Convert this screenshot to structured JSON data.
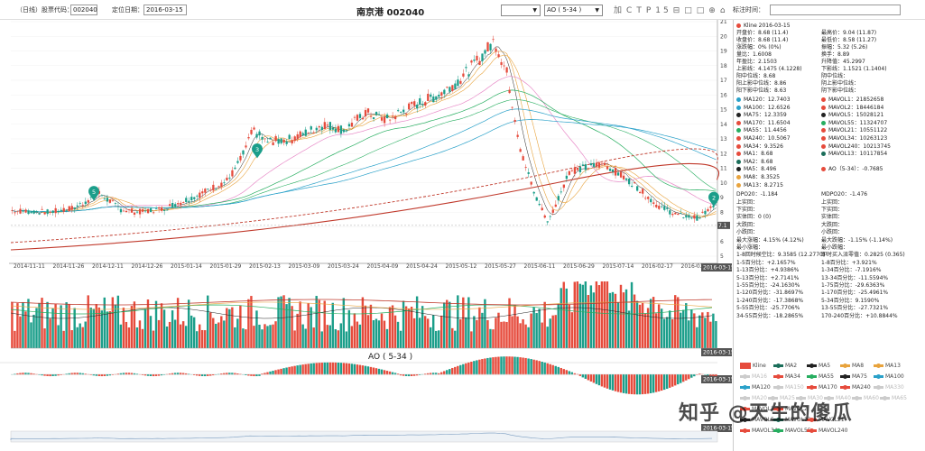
{
  "toolbar": {
    "code_label": "（日线）股票代码：",
    "code_value": "002040",
    "date_label": "定位日期：",
    "date_value": "2016-03-15",
    "title": "南京港 002040",
    "select1_value": "",
    "select2_value": "AO ( 5-34 )",
    "tools": [
      "加",
      "C",
      "T",
      "P",
      "15",
      "⊟",
      "□",
      "□",
      "⊕",
      "⌂"
    ]
  },
  "side_header": {
    "label": "标注时间：",
    "value": ""
  },
  "chart": {
    "price_ticks": [
      "21",
      "20",
      "19",
      "18",
      "17",
      "16",
      "15",
      "14",
      "13",
      "12",
      "11",
      "10",
      "9",
      "8",
      "7.1",
      "6",
      "5"
    ],
    "x_ticks": [
      "2014-11-11",
      "2014-11-26",
      "2014-12-11",
      "2014-12-26",
      "2015-01-14",
      "2015-01-29",
      "2015-02-13",
      "2015-03-09",
      "2015-03-24",
      "2015-04-09",
      "2015-04-24",
      "2015-05-12",
      "2015-05-27",
      "2015-06-11",
      "2015-06-29",
      "2015-07-14",
      "2016-02-17",
      "2016-03-"
    ],
    "current_date_tag": "2016-03-15",
    "price_tag": "7.1",
    "markers": [
      "5",
      "3",
      "2"
    ],
    "ao_title": "AO ( 5-34 )"
  },
  "info": {
    "kline_title": "Kline 2016-03-15",
    "rows": [
      [
        "开盘价：8.68 (11.4)",
        "最高价：9.04 (11.87)"
      ],
      [
        "收盘价：8.68 (11.4)",
        "最低价：8.58 (11.27)"
      ],
      [
        "涨跌幅：0% (0%)",
        "振幅：5.32 (5.26)"
      ],
      [
        "量比：1.6008",
        "换手：8.89"
      ],
      [
        "年盈比：2.1503",
        "升降值：45.2997"
      ],
      [
        "上影线：4.1475 (4.1228)",
        "下影线：1.1521 (1.1404)"
      ],
      [
        "阳中位线：8.68",
        "阴中位线："
      ],
      [
        "阳上影中位线：8.86",
        "阴上影中位线："
      ],
      [
        "阳下影中位线：8.63",
        "阴下影中位线："
      ]
    ],
    "ma_rows": [
      [
        "MA120：12.7403",
        "#2aa1c9",
        "MAVOL1：21852658",
        "#e64b3c"
      ],
      [
        "MA100：12.6526",
        "#2aa1c9",
        "MAVOL2：18446184",
        "#e64b3c"
      ],
      [
        "MA75：12.3359",
        "#222222",
        "MAVOL5：15028121",
        "#222222"
      ],
      [
        "MA170：11.6504",
        "#e64b3c",
        "MAVOL55：11324707",
        "#27ae60"
      ],
      [
        "MA55：11.4456",
        "#27ae60",
        "MAVOL21：10551122",
        "#e64b3c"
      ],
      [
        "MA240：10.5067",
        "#e64b3c",
        "MAVOL34：10263123",
        "#e64b3c"
      ],
      [
        "MA34：9.3526",
        "#e64b3c",
        "MAVOL240：10213745",
        "#e64b3c"
      ],
      [
        "MA1：8.68",
        "#e64b3c",
        "MAVOL13：10117854",
        "#1b6e5a"
      ],
      [
        "MA2：8.68",
        "#1b6e5a",
        "",
        ""
      ],
      [
        "MA5：8.496",
        "#222222",
        "AO（5-34）：-0.7685",
        "#e64b3c"
      ],
      [
        "MA8：8.3525",
        "#e8a33d",
        "",
        ""
      ],
      [
        "MA13：8.2715",
        "#e8a33d",
        "",
        ""
      ]
    ],
    "stat_rows": [
      [
        "DPO20：-1.184",
        "MDPO20：-1.476"
      ],
      [
        "上实回：",
        "上实回："
      ],
      [
        "下实回：",
        "下实回："
      ],
      [
        "实体回：0 (0)",
        "实体回："
      ],
      [
        "大跌回：",
        "大跌回："
      ],
      [
        "小跌回：",
        "小跌回："
      ],
      [
        "最大涨幅：4.15% (4.12%)",
        "最大跌幅：-1.15% (-1.14%)"
      ],
      [
        "最小涨幅：",
        "最小跌幅："
      ],
      [
        "1-8回时候空比：9.3585 (12.2770)",
        "即时买入派零值：0.2825 (0.365)"
      ],
      [
        "1-5百分比：+2.1657%",
        "1-8百分比：+3.921%"
      ],
      [
        "1-13百分比：+4.9386%",
        "1-34百分比：-7.1916%"
      ],
      [
        "5-13百分比：+2.7141%",
        "13-34百分比：-11.5594%"
      ],
      [
        "1-55百分比：-24.1630%",
        "1-75百分比：-29.6363%"
      ],
      [
        "1-120百分比：-31.8697%",
        "1-170百分比：-25.4961%"
      ],
      [
        "1-240百分比：-17.3868%",
        "5-34百分比：9.1590%"
      ],
      [
        "5-55百分比：-25.7706%",
        "13-55百分比：-27.7321%"
      ],
      [
        "34-55百分比：-18.2865%",
        "170-240百分比：+10.8844%"
      ]
    ]
  },
  "legend": {
    "items": [
      [
        "Kline",
        "#e64b3c",
        true
      ],
      [
        "MA2",
        "#1b6e5a",
        true
      ],
      [
        "MA5",
        "#222222",
        true
      ],
      [
        "MA8",
        "#e8a33d",
        true
      ],
      [
        "MA13",
        "#e8a33d",
        true
      ],
      [
        "MA16",
        "#bbbbbb",
        false
      ],
      [
        "MA34",
        "#e64b3c",
        true
      ],
      [
        "MA55",
        "#27ae60",
        true
      ],
      [
        "MA75",
        "#222222",
        true
      ],
      [
        "MA100",
        "#2aa1c9",
        true
      ],
      [
        "MA120",
        "#2aa1c9",
        true
      ],
      [
        "MA150",
        "#bbbbbb",
        false
      ],
      [
        "MA170",
        "#e64b3c",
        true
      ],
      [
        "MA240",
        "#e64b3c",
        true
      ],
      [
        "MA330",
        "#bbbbbb",
        false
      ],
      [
        "MA20",
        "#bbbbbb",
        false
      ],
      [
        "MA25",
        "#bbbbbb",
        false
      ],
      [
        "MA30",
        "#bbbbbb",
        false
      ],
      [
        "MA40",
        "#bbbbbb",
        false
      ],
      [
        "MA60",
        "#bbbbbb",
        false
      ],
      [
        "MA65",
        "#bbbbbb",
        false
      ],
      [
        "MAVOL1",
        "#e64b3c",
        true
      ],
      [
        "MAVOL2",
        "#e64b3c",
        true
      ],
      [
        "MAVOL5",
        "#222222",
        true
      ],
      [
        "MAVOL13",
        "#1b6e5a",
        true
      ],
      [
        "MAVOL21",
        "#e64b3c",
        true
      ],
      [
        "MAVOL34",
        "#e64b3c",
        true
      ],
      [
        "MAVOL55",
        "#27ae60",
        true
      ],
      [
        "MAVOL240",
        "#e64b3c",
        true
      ]
    ],
    "watermark": "知乎 @天生的傻瓜"
  },
  "colors": {
    "up": "#e64b3c",
    "down": "#1b9e8a",
    "ma_blue": "#2aa1c9",
    "ma_green": "#27ae60",
    "ma_orange": "#e8a33d",
    "ma_pink": "#e88bc8",
    "ma_red": "#c0392b"
  }
}
